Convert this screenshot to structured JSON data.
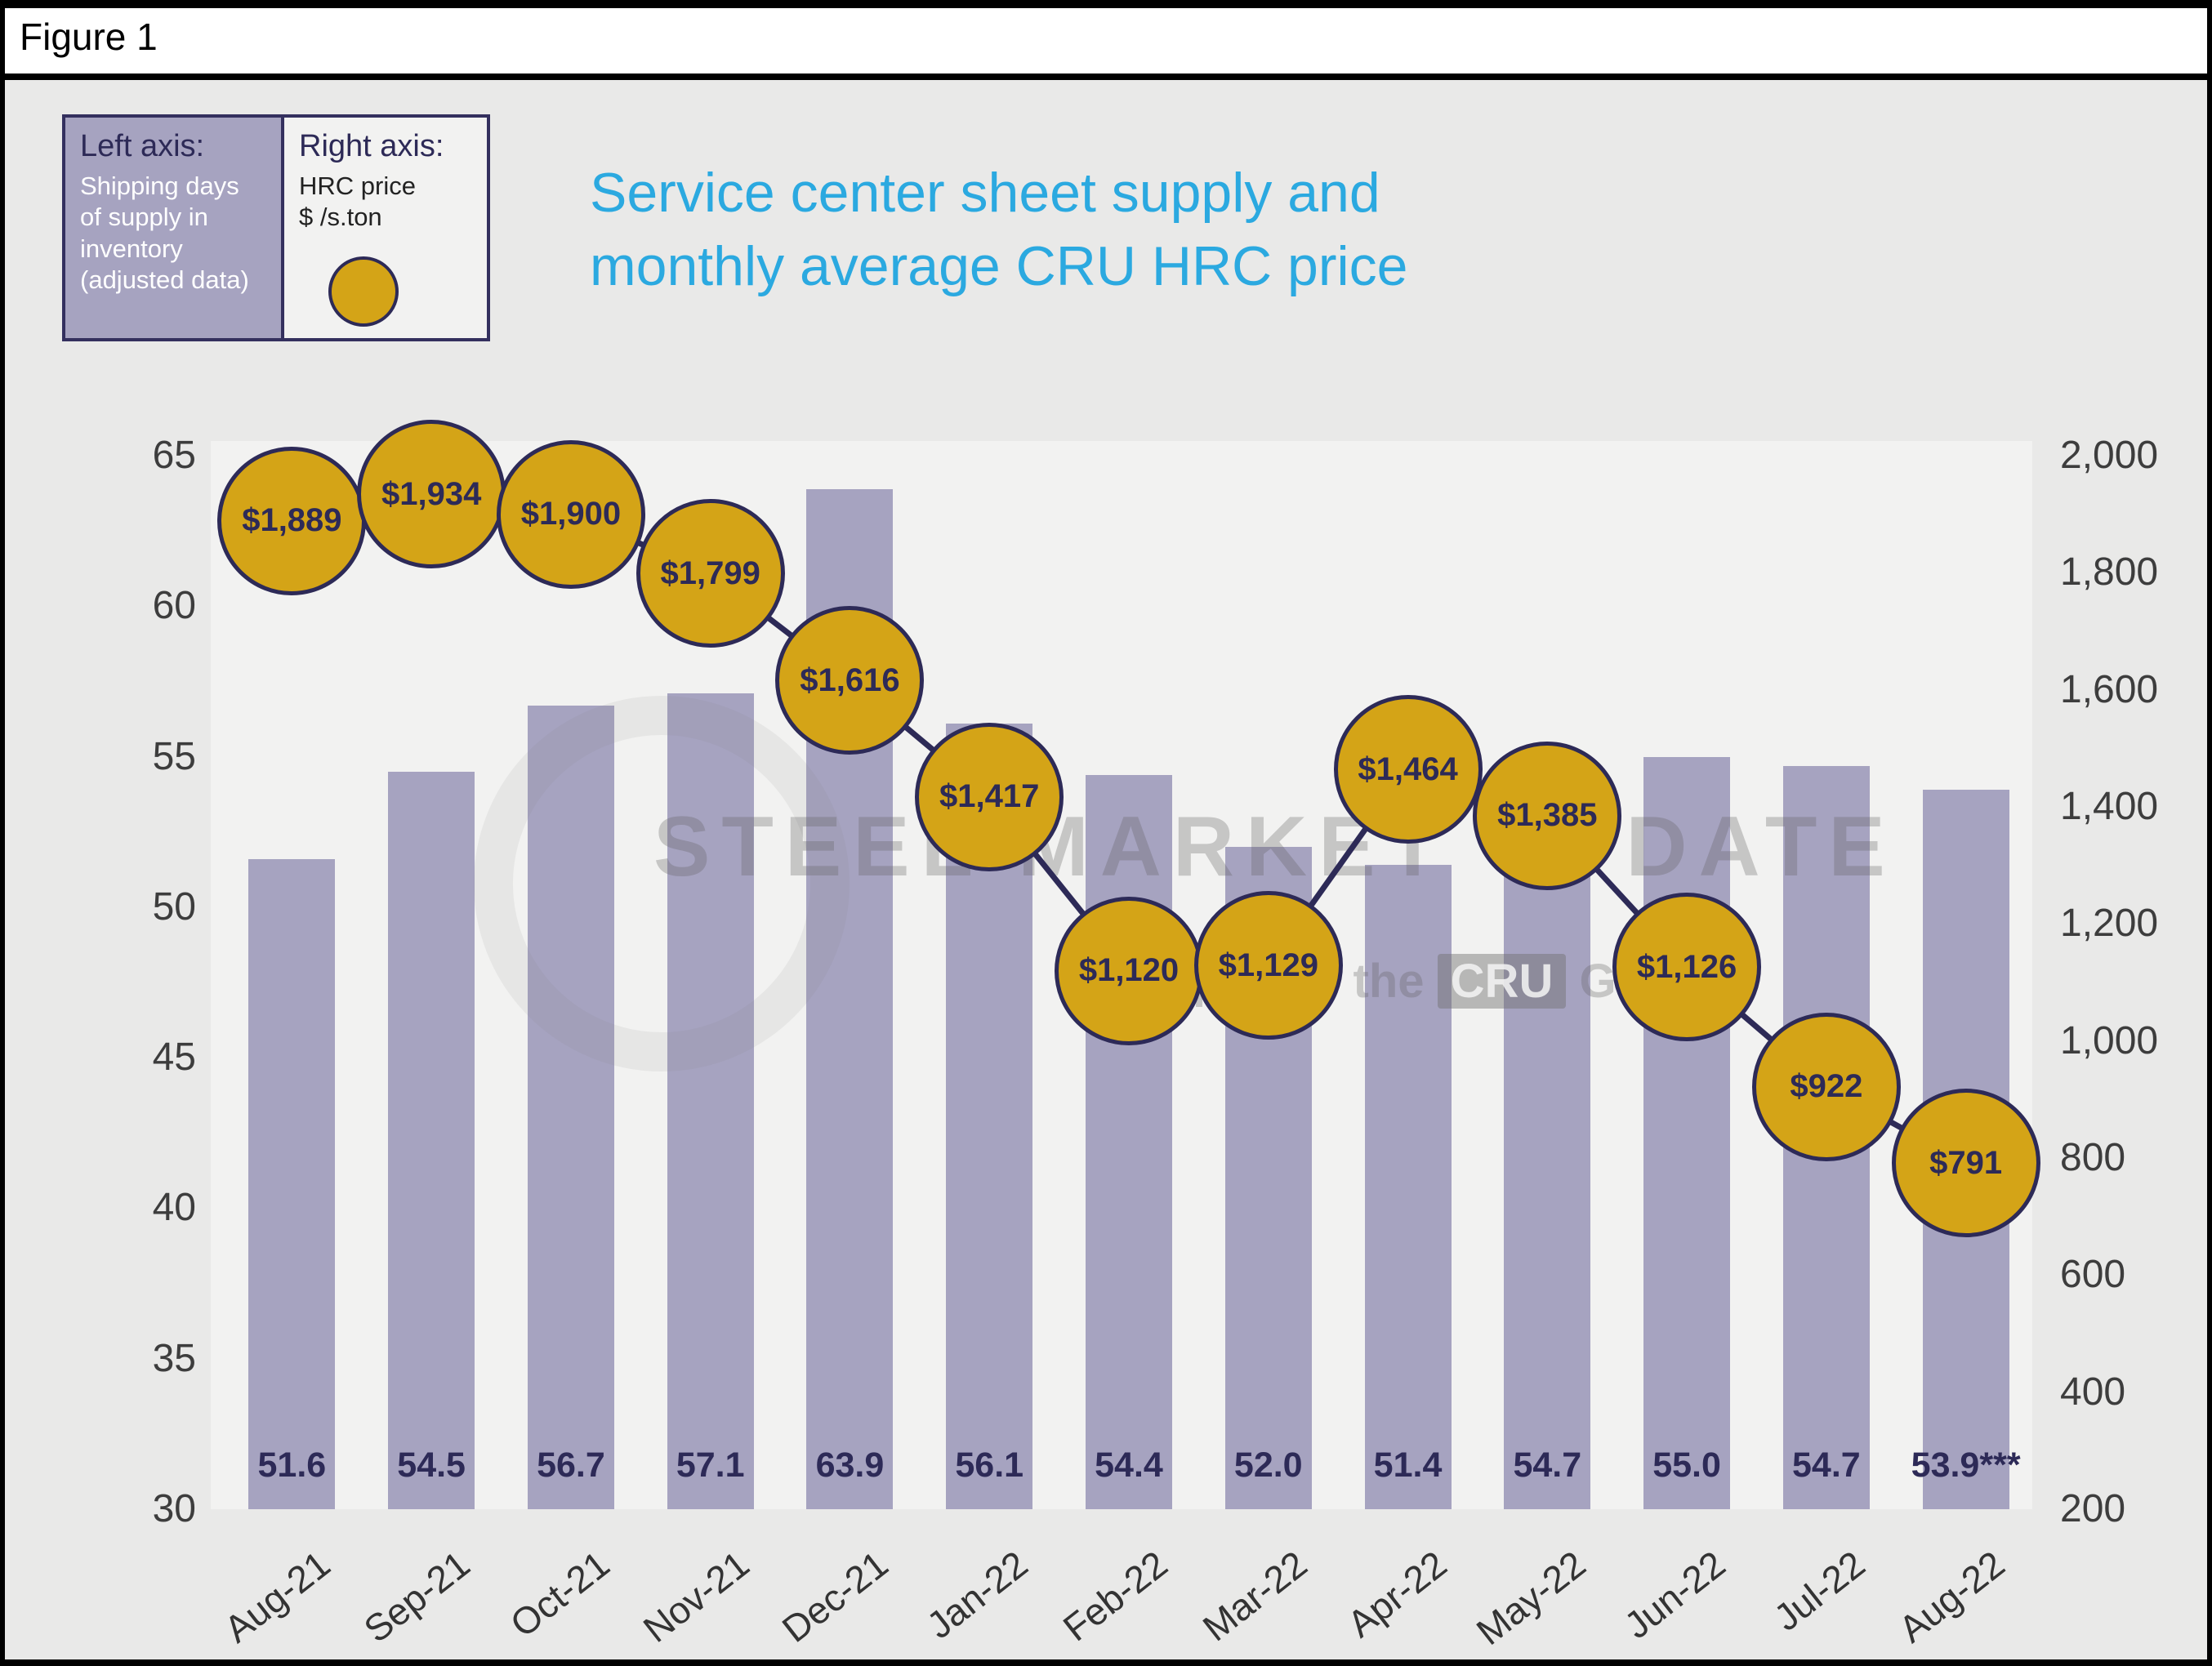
{
  "figure_label": "Figure 1",
  "title": "Service center sheet supply and\nmonthly average CRU HRC price",
  "legend": {
    "left_title": "Left axis:",
    "left_desc": "Shipping days of supply in inventory (adjusted data)",
    "right_title": "Right axis:",
    "right_desc": "HRC price\n$ /s.ton"
  },
  "watermark": {
    "line1": "STEEL MARKET UPDATE",
    "line2_prefix": "part of the",
    "line2_box": "CRU",
    "line2_suffix": "Group"
  },
  "chart_data": {
    "type": "bar",
    "title": "Service center sheet supply and monthly average CRU HRC price",
    "categories": [
      "Aug-21",
      "Sep-21",
      "Oct-21",
      "Nov-21",
      "Dec-21",
      "Jan-22",
      "Feb-22",
      "Mar-22",
      "Apr-22",
      "May-22",
      "Jun-22",
      "Jul-22",
      "Aug-22"
    ],
    "series": [
      {
        "name": "Shipping days of supply in inventory (adjusted data)",
        "type": "bar",
        "axis": "left",
        "values": [
          51.6,
          54.5,
          56.7,
          57.1,
          63.9,
          56.1,
          54.4,
          52.0,
          51.4,
          54.7,
          55.0,
          54.7,
          53.9
        ],
        "labels": [
          "51.6",
          "54.5",
          "56.7",
          "57.1",
          "63.9",
          "56.1",
          "54.4",
          "52.0",
          "51.4",
          "54.7",
          "55.0",
          "54.7",
          "53.9***"
        ]
      },
      {
        "name": "HRC price $ /s.ton",
        "type": "point-line",
        "axis": "right",
        "values": [
          1889,
          1934,
          1900,
          1799,
          1616,
          1417,
          1120,
          1129,
          1464,
          1385,
          1126,
          922,
          791
        ],
        "labels": [
          "$1,889",
          "$1,934",
          "$1,900",
          "$1,799",
          "$1,616",
          "$1,417",
          "$1,120",
          "$1,129",
          "$1,464",
          "$1,385",
          "$1,126",
          "$922",
          "$791"
        ]
      }
    ],
    "left_axis": {
      "label": "Shipping days of supply in inventory (adjusted data)",
      "min": 30,
      "max": 65,
      "ticks": [
        "30",
        "35",
        "40",
        "45",
        "50",
        "55",
        "60",
        "65"
      ]
    },
    "right_axis": {
      "label": "HRC price $ /s.ton",
      "min": 200,
      "max": 2000,
      "ticks": [
        "200",
        "400",
        "600",
        "800",
        "1,000",
        "1,200",
        "1,400",
        "1,600",
        "1,800",
        "2,000"
      ]
    },
    "colors": {
      "bar": "#A6A3C0",
      "marker_fill": "#D4A417",
      "marker_stroke": "#2D2A57",
      "line": "#2D2A57",
      "title": "#2BA9E0"
    },
    "legend_position": "top-left",
    "grid": false
  }
}
